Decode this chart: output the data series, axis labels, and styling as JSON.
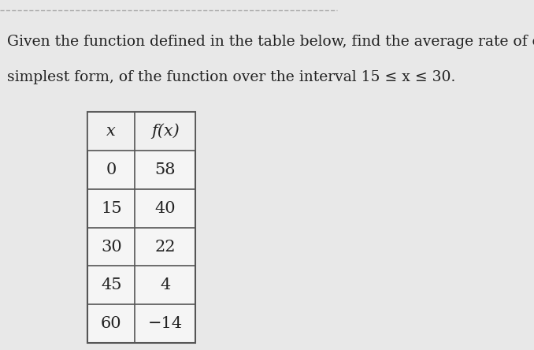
{
  "title_line1": "Given the function defined in the table below, find the average rate of change, in",
  "title_line2": "simplest form, of the function over the interval 15 ≤ x ≤ 30.",
  "col_headers": [
    "x",
    "f(x)"
  ],
  "table_data": [
    [
      "0",
      "58"
    ],
    [
      "15",
      "40"
    ],
    [
      "30",
      "22"
    ],
    [
      "45",
      "4"
    ],
    [
      "60",
      "−14"
    ]
  ],
  "background_color": "#e8e8e8",
  "table_bg": "#f5f5f5",
  "header_bg": "#f0f0f0",
  "border_color": "#555555",
  "text_color": "#222222",
  "dashed_line_color": "#aaaaaa",
  "title_fontsize": 13.5,
  "table_fontsize": 15,
  "header_fontsize": 15,
  "fig_width": 6.78,
  "fig_height": 4.44
}
